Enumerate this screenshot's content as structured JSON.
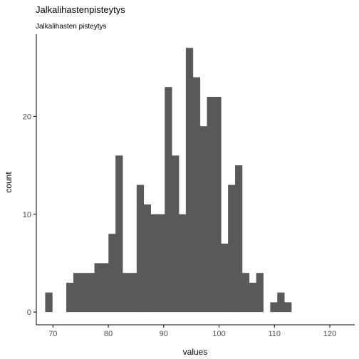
{
  "chart_data": {
    "type": "bar",
    "title": "Jalkalihastenpisteytys",
    "subtitle": "Jalkalihasten pisteytys",
    "xlabel": "values",
    "ylabel": "count",
    "bin_width": 1.27,
    "bins": [
      {
        "x0": 68.6,
        "count": 2
      },
      {
        "x0": 69.87,
        "count": 0
      },
      {
        "x0": 71.14,
        "count": 0
      },
      {
        "x0": 72.41,
        "count": 3
      },
      {
        "x0": 73.68,
        "count": 4
      },
      {
        "x0": 74.95,
        "count": 4
      },
      {
        "x0": 76.22,
        "count": 4
      },
      {
        "x0": 77.49,
        "count": 5
      },
      {
        "x0": 78.76,
        "count": 5
      },
      {
        "x0": 80.03,
        "count": 8
      },
      {
        "x0": 81.3,
        "count": 16
      },
      {
        "x0": 82.57,
        "count": 4
      },
      {
        "x0": 83.84,
        "count": 4
      },
      {
        "x0": 85.11,
        "count": 13
      },
      {
        "x0": 86.38,
        "count": 11
      },
      {
        "x0": 87.65,
        "count": 10
      },
      {
        "x0": 88.92,
        "count": 10
      },
      {
        "x0": 90.19,
        "count": 23
      },
      {
        "x0": 91.46,
        "count": 16
      },
      {
        "x0": 92.73,
        "count": 10
      },
      {
        "x0": 94.0,
        "count": 27
      },
      {
        "x0": 95.27,
        "count": 24
      },
      {
        "x0": 96.54,
        "count": 19
      },
      {
        "x0": 97.81,
        "count": 22
      },
      {
        "x0": 99.08,
        "count": 22
      },
      {
        "x0": 100.35,
        "count": 7
      },
      {
        "x0": 101.62,
        "count": 13
      },
      {
        "x0": 102.89,
        "count": 15
      },
      {
        "x0": 104.16,
        "count": 4
      },
      {
        "x0": 105.43,
        "count": 3
      },
      {
        "x0": 106.7,
        "count": 4
      },
      {
        "x0": 107.97,
        "count": 0
      },
      {
        "x0": 109.24,
        "count": 1
      },
      {
        "x0": 110.51,
        "count": 2
      },
      {
        "x0": 111.78,
        "count": 1
      }
    ],
    "x_ticks": [
      70,
      80,
      90,
      100,
      110,
      120
    ],
    "y_ticks": [
      0,
      10,
      20
    ],
    "xlim": [
      67,
      124.5
    ],
    "ylim": [
      -1.3,
      28.4
    ],
    "bar_color": "#595959",
    "grid": false
  }
}
